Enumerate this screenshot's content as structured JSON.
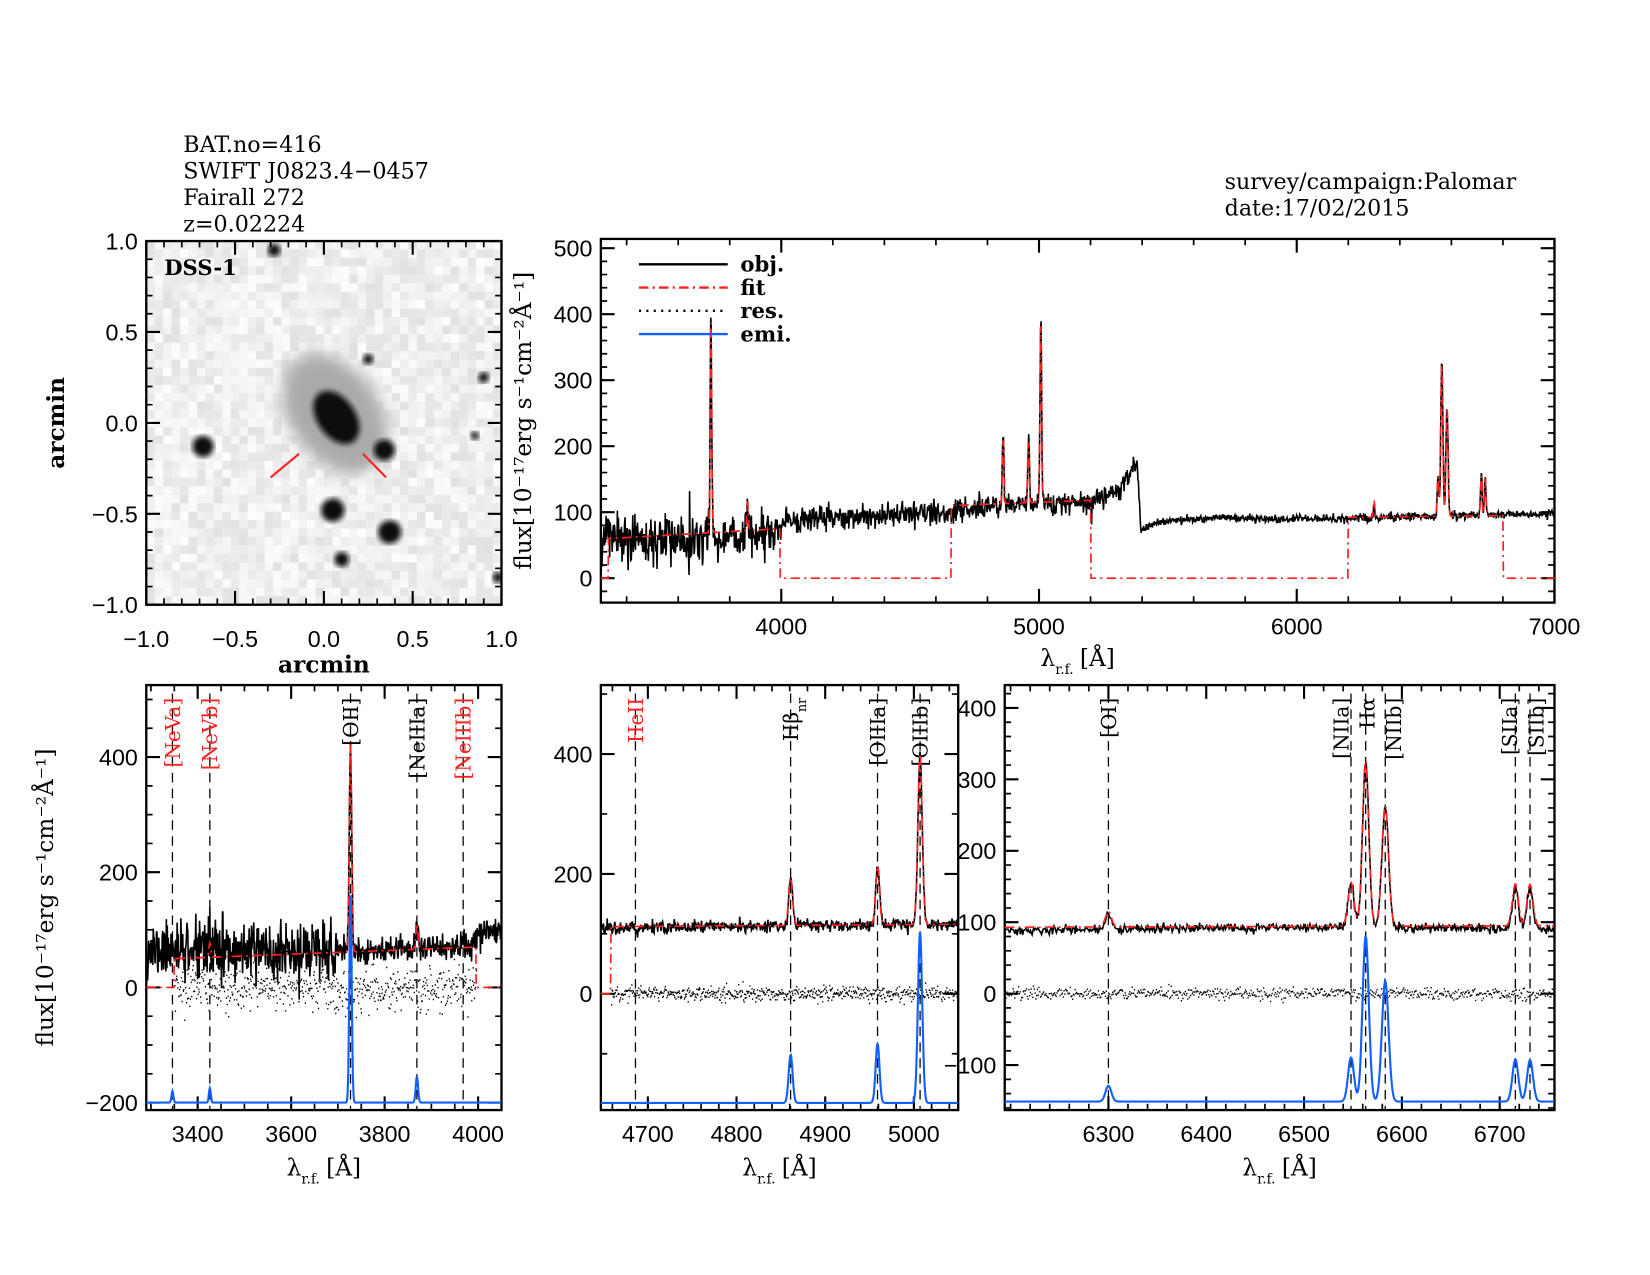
{
  "header": {
    "lines": [
      "BAT.no=416",
      "SWIFT J0823.4−0457",
      "Fairall 272",
      "z=0.02224"
    ],
    "survey": "survey/campaign:Palomar",
    "date": "date:17/02/2015"
  },
  "colors": {
    "obj": "#000000",
    "fit": "#ff2020",
    "res": "#000000",
    "emi": "#1060ff",
    "red_label": "#ff2020"
  },
  "legend": {
    "placement": "top-left",
    "entries": [
      {
        "label": "obj.",
        "style": "solid",
        "color": "#000000"
      },
      {
        "label": "fit",
        "style": "dash-dot",
        "color": "#ff2020"
      },
      {
        "label": "res.",
        "style": "dotted",
        "color": "#000000"
      },
      {
        "label": "emi.",
        "style": "solid",
        "color": "#1060ff"
      }
    ]
  },
  "chart_data": [
    {
      "id": "image",
      "type": "image",
      "image_label": "DSS-1",
      "xlabel": "arcmin",
      "ylabel": "arcmin",
      "xlim": [
        -1.0,
        1.0
      ],
      "ylim": [
        -1.0,
        1.0
      ],
      "xticks": [
        -1.0,
        -0.5,
        0.0,
        0.5,
        1.0
      ],
      "xtick_labels": [
        "−1.0",
        "−0.5",
        "0.0",
        "0.5",
        "1.0"
      ],
      "yticks": [
        -1.0,
        -0.5,
        0.0,
        0.5,
        1.0
      ],
      "ytick_labels": [
        "−1.0",
        "−0.5",
        "0.0",
        "0.5",
        "1.0"
      ],
      "colormap": "grayscale-inverted"
    },
    {
      "id": "full",
      "type": "line",
      "xlabel": "λ",
      "xlabel_sub": "r.f.",
      "xlabel_unit": "[Å]",
      "ylabel": "flux[10⁻¹⁷erg s⁻¹cm⁻²Å⁻¹]",
      "xlim": [
        3300,
        7000
      ],
      "ylim": [
        -37,
        514
      ],
      "xticks": [
        4000,
        5000,
        6000,
        7000
      ],
      "xtick_labels": [
        "4000",
        "5000",
        "6000",
        "7000"
      ],
      "yticks": [
        0,
        100,
        200,
        300,
        400,
        500
      ],
      "ytick_labels": [
        "0",
        "100",
        "200",
        "300",
        "400",
        "500"
      ],
      "obj_continuum": [
        [
          3300,
          58
        ],
        [
          3500,
          60
        ],
        [
          3700,
          62
        ],
        [
          3990,
          70
        ],
        [
          4010,
          88
        ],
        [
          4300,
          92
        ],
        [
          4600,
          100
        ],
        [
          4900,
          112
        ],
        [
          5200,
          115
        ],
        [
          5300,
          130
        ],
        [
          5380,
          175
        ],
        [
          5395,
          70
        ],
        [
          5450,
          85
        ],
        [
          5700,
          92
        ],
        [
          5900,
          90
        ],
        [
          6200,
          90
        ],
        [
          6600,
          95
        ],
        [
          7000,
          97
        ]
      ],
      "fit_segments": [
        [
          3330,
          3995,
          60,
          75
        ],
        [
          4660,
          5200,
          110,
          118
        ],
        [
          6200,
          6800,
          92,
          95
        ]
      ],
      "lines": [
        {
          "w": 3727,
          "amp": 335,
          "sigma": 3
        },
        {
          "w": 3869,
          "amp": 45,
          "sigma": 3
        },
        {
          "w": 4861,
          "amp": 100,
          "sigma": 3
        },
        {
          "w": 4959,
          "amp": 95,
          "sigma": 3
        },
        {
          "w": 5007,
          "amp": 280,
          "sigma": 3
        },
        {
          "w": 6300,
          "amp": 25,
          "sigma": 3
        },
        {
          "w": 6548,
          "amp": 60,
          "sigma": 3
        },
        {
          "w": 6563,
          "amp": 235,
          "sigma": 4
        },
        {
          "w": 6583,
          "amp": 165,
          "sigma": 4
        },
        {
          "w": 6716,
          "amp": 60,
          "sigma": 3
        },
        {
          "w": 6731,
          "amp": 58,
          "sigma": 3
        }
      ]
    },
    {
      "id": "zoom-oii",
      "type": "line",
      "xlabel": "λ",
      "xlabel_sub": "r.f.",
      "xlabel_unit": "[Å]",
      "ylabel": "flux[10⁻¹⁷erg s⁻¹cm⁻²Å⁻¹]",
      "xlim": [
        3290,
        4050
      ],
      "ylim": [
        -213,
        525
      ],
      "xticks": [
        3400,
        3600,
        3800,
        4000
      ],
      "xtick_labels": [
        "3400",
        "3600",
        "3800",
        "4000"
      ],
      "yticks": [
        -200,
        0,
        200,
        400
      ],
      "ytick_labels": [
        "−200",
        "0",
        "200",
        "400"
      ],
      "emi_baseline": -200,
      "obj_continuum": [
        [
          3290,
          65
        ],
        [
          3500,
          62
        ],
        [
          3700,
          62
        ],
        [
          3990,
          72
        ],
        [
          4000,
          95
        ],
        [
          4050,
          100
        ]
      ],
      "fit_segments": [
        [
          3350,
          3995,
          50,
          70
        ]
      ],
      "lines": [
        {
          "label": "[NeVa]",
          "w": 3346,
          "amp": 20,
          "sigma": 2,
          "color": "red"
        },
        {
          "label": "[NeVb]",
          "w": 3426,
          "amp": 25,
          "sigma": 2,
          "color": "red"
        },
        {
          "label": "[OII]",
          "w": 3727,
          "amp": 360,
          "sigma": 2.5,
          "color": "black"
        },
        {
          "label": "[NeIIIa]",
          "w": 3869,
          "amp": 45,
          "sigma": 2.5,
          "color": "black"
        },
        {
          "label": "[NeIIIb]",
          "w": 3968,
          "amp": 0,
          "sigma": 2.5,
          "color": "red"
        }
      ]
    },
    {
      "id": "zoom-hb-oiii",
      "type": "line",
      "xlabel": "λ",
      "xlabel_sub": "r.f.",
      "xlabel_unit": "[Å]",
      "xlim": [
        4647,
        5050
      ],
      "ylim": [
        -194,
        515
      ],
      "xticks": [
        4700,
        4800,
        4900,
        5000
      ],
      "xtick_labels": [
        "4700",
        "4800",
        "4900",
        "5000"
      ],
      "yticks": [
        0,
        200,
        400
      ],
      "ytick_labels": [
        "0",
        "200",
        "400"
      ],
      "emi_baseline": -182,
      "obj_continuum": [
        [
          4647,
          110
        ],
        [
          4850,
          113
        ],
        [
          5050,
          116
        ]
      ],
      "fit_segments": [
        [
          4658,
          5050,
          112,
          116
        ]
      ],
      "lines": [
        {
          "label": "HeII",
          "w": 4686,
          "amp": 0,
          "sigma": 2,
          "color": "red"
        },
        {
          "label": "Hβ",
          "label_sub": "nr",
          "w": 4861,
          "amp": 80,
          "sigma": 2.2,
          "color": "black"
        },
        {
          "label": "[OIIIa]",
          "w": 4959,
          "amp": 99,
          "sigma": 2.2,
          "color": "black"
        },
        {
          "label": "[OIIIb]",
          "w": 5007,
          "amp": 285,
          "sigma": 2.4,
          "color": "black"
        }
      ]
    },
    {
      "id": "zoom-ha",
      "type": "line",
      "xlabel": "λ",
      "xlabel_sub": "r.f.",
      "xlabel_unit": "[Å]",
      "xlim": [
        6194,
        6756
      ],
      "ylim": [
        -163,
        432
      ],
      "xticks": [
        6300,
        6400,
        6500,
        6600,
        6700
      ],
      "xtick_labels": [
        "6300",
        "6400",
        "6500",
        "6600",
        "6700"
      ],
      "yticks": [
        -100,
        0,
        100,
        200,
        300,
        400
      ],
      "ytick_labels": [
        "−100",
        "0",
        "100",
        "200",
        "300",
        "400"
      ],
      "emi_baseline": -151,
      "obj_continuum": [
        [
          6194,
          88
        ],
        [
          6400,
          92
        ],
        [
          6600,
          93
        ],
        [
          6756,
          90
        ]
      ],
      "fit_segments": [
        [
          6194,
          6756,
          93,
          95
        ]
      ],
      "lines": [
        {
          "label": "[OI]",
          "w": 6300,
          "amp": 22,
          "sigma": 3,
          "color": "black"
        },
        {
          "label": "[NIIa]",
          "w": 6548,
          "amp": 62,
          "sigma": 3,
          "color": "black"
        },
        {
          "label": "Hα",
          "w": 6563,
          "amp": 232,
          "sigma": 3.2,
          "color": "black"
        },
        {
          "label": "[NIIb]",
          "w": 6583,
          "amp": 169,
          "sigma": 3.4,
          "color": "black"
        },
        {
          "label": "[SIIa]",
          "w": 6716,
          "amp": 59,
          "sigma": 3,
          "color": "black"
        },
        {
          "label": "[SIIb]",
          "w": 6731,
          "amp": 58,
          "sigma": 3,
          "color": "black"
        }
      ]
    }
  ]
}
